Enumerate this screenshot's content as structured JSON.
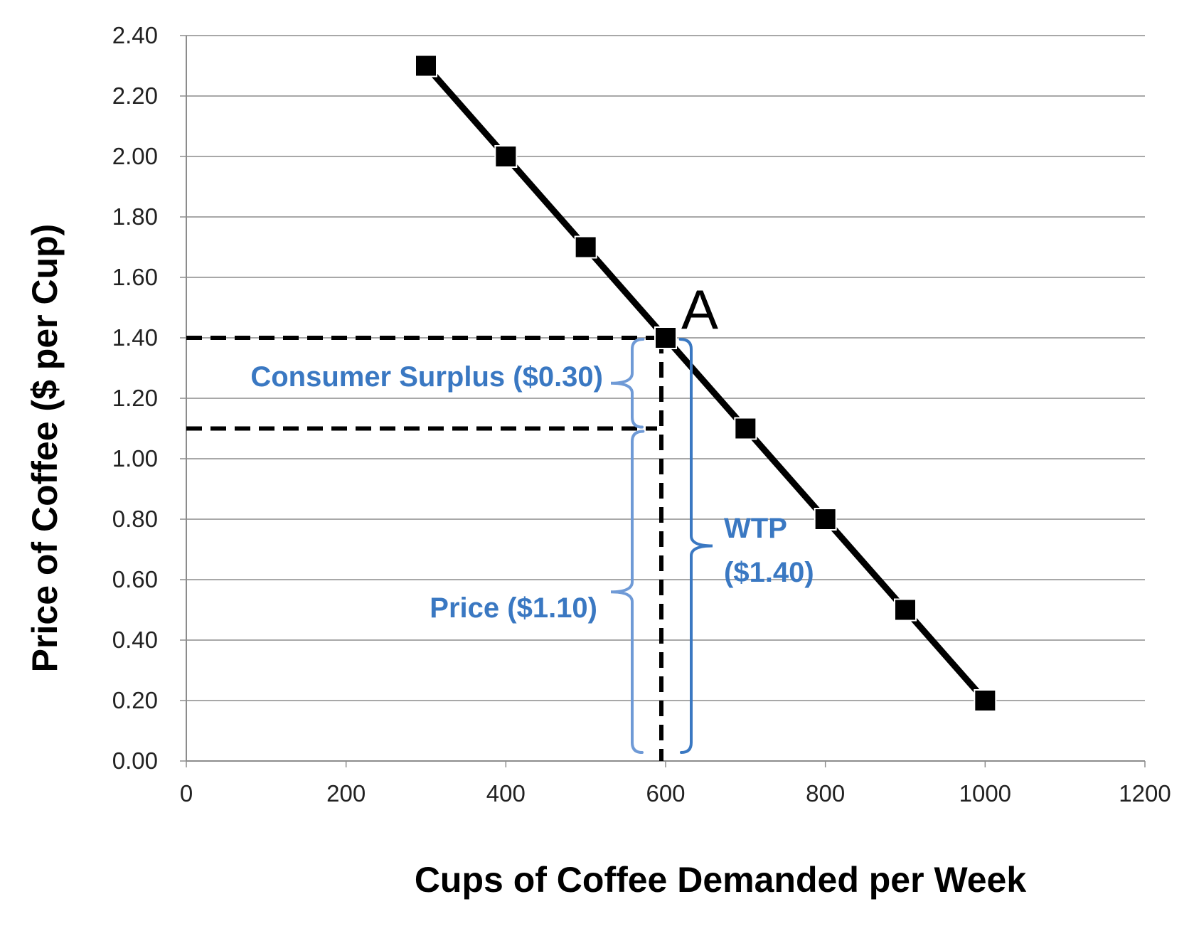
{
  "chart_data": {
    "type": "line",
    "title": "",
    "xlabel": "Cups of Coffee Demanded per Week",
    "ylabel": "Price of Coffee ($ per Cup)",
    "xlim": [
      0,
      1200
    ],
    "ylim": [
      0,
      2.4
    ],
    "x_ticks": [
      "0",
      "200",
      "400",
      "600",
      "800",
      "1000",
      "1200"
    ],
    "y_ticks": [
      "0.00",
      "0.20",
      "0.40",
      "0.60",
      "0.80",
      "1.00",
      "1.20",
      "1.40",
      "1.60",
      "1.80",
      "2.00",
      "2.20",
      "2.40"
    ],
    "grid": true,
    "series": [
      {
        "x": [
          300,
          400,
          500,
          600,
          700,
          800,
          900,
          1000
        ],
        "y": [
          2.3,
          2.0,
          1.7,
          1.4,
          1.1,
          0.8,
          0.5,
          0.2
        ]
      }
    ],
    "reference_lines": {
      "wtp_price": 1.4,
      "market_price": 1.1,
      "quantity": 600
    },
    "annotations": {
      "point": "A",
      "consumer_surplus": "Consumer Surplus ($0.30)",
      "price": "Price ($1.10)",
      "wtp_line1": "WTP",
      "wtp_line2": "($1.40)"
    },
    "colors": {
      "annotation": "#3a78c2",
      "brace_light": "#6f9ad6",
      "line": "#000000",
      "grid": "#8c8c8c"
    }
  }
}
